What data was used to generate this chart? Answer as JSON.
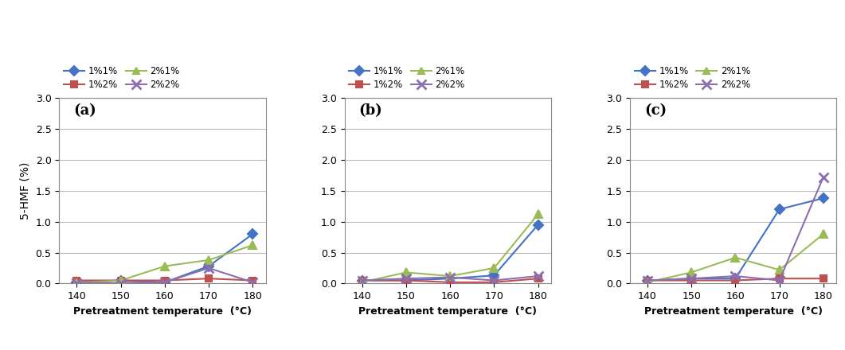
{
  "x": [
    140,
    150,
    160,
    170,
    180
  ],
  "panels": [
    {
      "label": "(a)",
      "series": {
        "1%1%": [
          0.02,
          0.05,
          0.02,
          0.28,
          0.8
        ],
        "1%2%": [
          0.05,
          0.05,
          0.05,
          0.08,
          0.05
        ],
        "2%1%": [
          0.01,
          0.05,
          0.28,
          0.38,
          0.62
        ],
        "2%2%": [
          0.01,
          0.01,
          0.02,
          0.25,
          0.02
        ]
      }
    },
    {
      "label": "(b)",
      "series": {
        "1%1%": [
          0.05,
          0.05,
          0.08,
          0.13,
          0.95
        ],
        "1%2%": [
          0.05,
          0.05,
          0.02,
          0.02,
          0.08
        ],
        "2%1%": [
          0.02,
          0.18,
          0.12,
          0.25,
          1.12
        ],
        "2%2%": [
          0.05,
          0.08,
          0.1,
          0.05,
          0.12
        ]
      }
    },
    {
      "label": "(c)",
      "series": {
        "1%1%": [
          0.05,
          0.08,
          0.08,
          1.2,
          1.38
        ],
        "1%2%": [
          0.05,
          0.05,
          0.05,
          0.08,
          0.08
        ],
        "2%1%": [
          0.02,
          0.18,
          0.42,
          0.22,
          0.8
        ],
        "2%2%": [
          0.05,
          0.08,
          0.12,
          0.05,
          1.72
        ]
      }
    }
  ],
  "series_styles": {
    "1%1%": {
      "color": "#4472C4",
      "marker": "D",
      "linestyle": "-"
    },
    "1%2%": {
      "color": "#C0504D",
      "marker": "s",
      "linestyle": "-"
    },
    "2%1%": {
      "color": "#9BBB59",
      "marker": "^",
      "linestyle": "-"
    },
    "2%2%": {
      "color": "#8B6FAE",
      "marker": "x",
      "linestyle": "-"
    }
  },
  "ylim": [
    0.0,
    3.0
  ],
  "yticks": [
    0.0,
    0.5,
    1.0,
    1.5,
    2.0,
    2.5,
    3.0
  ],
  "xticks": [
    140,
    150,
    160,
    170,
    180
  ],
  "ylabel": "5-HMF (%)",
  "xlabel": "Pretreatment temperature  (°C)",
  "bg_color": "#FFFFFF",
  "grid_color": "#BBBBBB",
  "labels_order": [
    "1%1%",
    "1%2%",
    "2%1%",
    "2%2%"
  ]
}
